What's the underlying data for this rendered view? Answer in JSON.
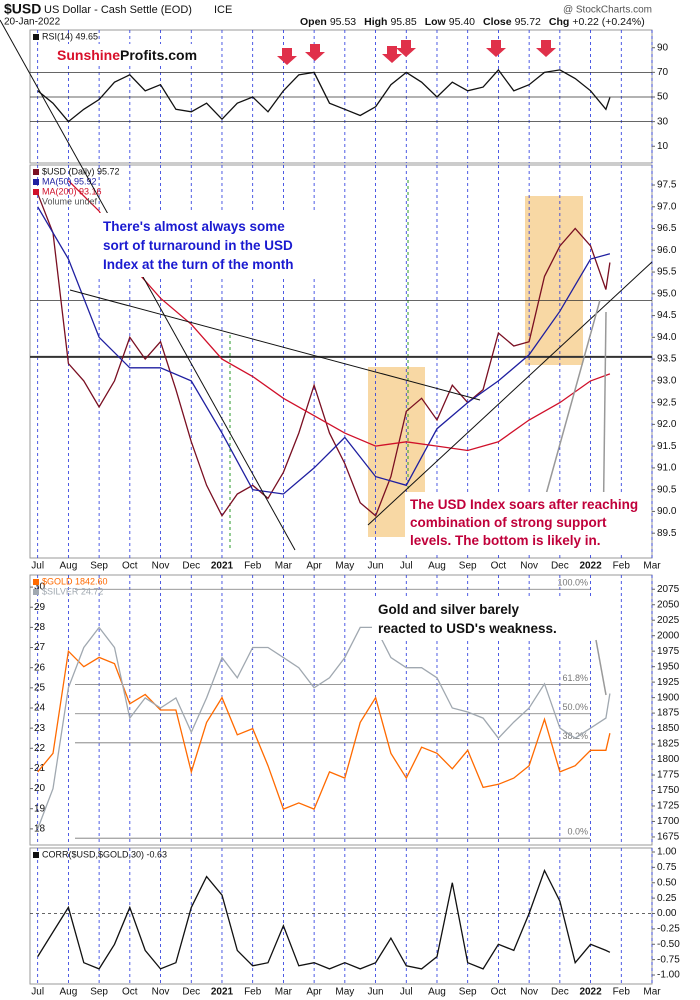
{
  "header": {
    "symbol": "$USD",
    "name": "US Dollar - Cash Settle (EOD)",
    "exchange": "ICE",
    "date": "20-Jan-2022",
    "source": "@ StockCharts.com",
    "quote": [
      {
        "label": "Open",
        "value": "95.53"
      },
      {
        "label": "High",
        "value": "95.85"
      },
      {
        "label": "Low",
        "value": "95.40"
      },
      {
        "label": "Close",
        "value": "95.72"
      },
      {
        "label": "Chg",
        "value": "+0.22 (+0.24%)"
      }
    ]
  },
  "logo": {
    "part1": "Sunshine",
    "part2": "Profits.com"
  },
  "annotations": [
    {
      "lines": [
        "There's almost always some",
        "sort of turnaround in the USD",
        "Index at the turn of the month"
      ]
    },
    {
      "lines": [
        "The USD Index soars after reaching",
        "combination of strong support",
        "levels. The bottom is likely in."
      ]
    },
    {
      "lines": [
        "Gold and silver barely",
        "reacted to USD's weakness."
      ]
    }
  ],
  "chart_data": [
    {
      "type": "line",
      "xlim": [
        -0.25,
        20
      ],
      "ylim": [
        -3.6,
        104.4
      ],
      "yticks": [
        10,
        30,
        50,
        70,
        90
      ],
      "reference_lines": [
        70,
        50,
        30
      ],
      "series": [
        {
          "legend": "RSI(14) 49.65",
          "color": "#111111",
          "x": [
            0,
            0.5,
            1,
            1.5,
            2,
            2.5,
            3,
            3.5,
            4,
            4.5,
            5,
            5.5,
            6,
            6.5,
            7,
            7.5,
            8,
            8.5,
            9,
            9.5,
            10,
            10.5,
            11,
            11.5,
            12,
            12.5,
            13,
            13.5,
            14,
            14.5,
            15,
            15.5,
            16,
            16.5,
            17,
            17.5,
            18,
            18.5,
            18.63
          ],
          "values": [
            55,
            45,
            30,
            40,
            48,
            62,
            68,
            55,
            60,
            40,
            38,
            45,
            32,
            45,
            50,
            38,
            55,
            68,
            70,
            45,
            40,
            35,
            42,
            60,
            70,
            62,
            50,
            62,
            55,
            58,
            72,
            55,
            60,
            70,
            72,
            65,
            55,
            40,
            49.65
          ]
        }
      ]
    },
    {
      "type": "line",
      "xlim": [
        -0.25,
        20
      ],
      "ylim": [
        88.93,
        97.96
      ],
      "note": "Volume undef",
      "yticks": [
        89.5,
        {
          "value": 90,
          "label": "90.0"
        },
        90.5,
        {
          "value": 91,
          "label": "91.0"
        },
        91.5,
        {
          "value": 92,
          "label": "92.0"
        },
        92.5,
        {
          "value": 93,
          "label": "93.0"
        },
        93.5,
        {
          "value": 94,
          "label": "94.0"
        },
        94.5,
        {
          "value": 95,
          "label": "95.0"
        },
        95.5,
        {
          "value": 96,
          "label": "96.0"
        },
        96.5,
        {
          "value": 97,
          "label": "97.0"
        },
        97.5
      ],
      "xticks": [
        {
          "value": 0,
          "label": "Jul"
        },
        {
          "value": 1,
          "label": "Aug"
        },
        {
          "value": 2,
          "label": "Sep"
        },
        {
          "value": 3,
          "label": "Oct"
        },
        {
          "value": 4,
          "label": "Nov"
        },
        {
          "value": 5,
          "label": "Dec"
        },
        {
          "value": 6,
          "label": "2021"
        },
        {
          "value": 7,
          "label": "Feb"
        },
        {
          "value": 8,
          "label": "Mar"
        },
        {
          "value": 9,
          "label": "Apr"
        },
        {
          "value": 10,
          "label": "May"
        },
        {
          "value": 11,
          "label": "Jun"
        },
        {
          "value": 12,
          "label": "Jul"
        },
        {
          "value": 13,
          "label": "Aug"
        },
        {
          "value": 14,
          "label": "Sep"
        },
        {
          "value": 15,
          "label": "Oct"
        },
        {
          "value": 16,
          "label": "Nov"
        },
        {
          "value": 17,
          "label": "Dec"
        },
        {
          "value": 18,
          "label": "2022"
        },
        {
          "value": 19,
          "label": "Feb"
        },
        {
          "value": 20,
          "label": "Mar"
        }
      ],
      "reference_lines": [
        94.85,
        93.55
      ],
      "series": [
        {
          "legend": "$USD (Daily) 95.72",
          "color": "#7a0f22",
          "x": [
            0,
            0.5,
            1,
            1.5,
            2,
            2.5,
            3,
            3.5,
            4,
            4.5,
            5,
            5.5,
            6,
            6.5,
            7,
            7.5,
            8,
            8.5,
            9,
            9.5,
            10,
            10.5,
            11,
            11.5,
            12,
            12.5,
            13,
            13.5,
            14,
            14.5,
            15,
            15.5,
            16,
            16.5,
            17,
            17.5,
            18,
            18.5,
            18.63
          ],
          "values": [
            97.3,
            96.4,
            93.4,
            93.0,
            92.4,
            93.0,
            94.0,
            93.5,
            93.9,
            92.8,
            91.6,
            90.6,
            89.9,
            90.4,
            90.6,
            90.3,
            90.9,
            91.8,
            92.9,
            91.8,
            91.1,
            90.2,
            89.9,
            90.8,
            92.3,
            92.6,
            92.1,
            92.9,
            92.5,
            92.8,
            94.1,
            93.8,
            93.9,
            95.4,
            96.1,
            96.5,
            96.1,
            95.1,
            95.72
          ]
        },
        {
          "legend": "MA(50) 95.92",
          "color": "#1f1fa0",
          "x": [
            0,
            1,
            2,
            3,
            4,
            5,
            6,
            7,
            8,
            9,
            10,
            11,
            12,
            13,
            14,
            15,
            16,
            17,
            18,
            18.63
          ],
          "values": [
            97.0,
            95.8,
            94.0,
            93.3,
            93.3,
            93.0,
            91.8,
            90.5,
            90.4,
            91.0,
            91.7,
            90.8,
            90.6,
            91.9,
            92.5,
            93.0,
            93.6,
            94.6,
            95.8,
            95.92
          ]
        },
        {
          "legend": "MA(200) 93.16",
          "color": "#d0102a",
          "x": [
            1,
            2,
            3,
            4,
            5,
            6,
            7,
            8,
            9,
            10,
            11,
            12,
            13,
            14,
            15,
            16,
            17,
            18,
            18.63
          ],
          "values": [
            97.6,
            96.9,
            95.7,
            94.9,
            94.3,
            93.5,
            93.1,
            92.6,
            92.2,
            91.8,
            91.5,
            91.6,
            91.5,
            91.4,
            91.6,
            92.1,
            92.5,
            93.0,
            93.16
          ]
        }
      ]
    },
    {
      "type": "line",
      "xlim": [
        -0.25,
        20
      ],
      "ylim": [
        17.2,
        30.6
      ],
      "y_axis_side": "left",
      "yticks": [
        18,
        19,
        20,
        21,
        22,
        23,
        24,
        25,
        26,
        27,
        28,
        29,
        30
      ],
      "y2lim": [
        1662,
        2098
      ],
      "y2ticks": [
        1675,
        1700,
        1725,
        1750,
        1775,
        1800,
        1825,
        1850,
        1875,
        1900,
        1925,
        1950,
        1975,
        2000,
        2025,
        2050,
        2075
      ],
      "fib_levels": [
        {
          "label": "100.0%",
          "value": 2075
        },
        {
          "label": "61.8%",
          "value": 1921
        },
        {
          "label": "50.0%",
          "value": 1874
        },
        {
          "label": "38.2%",
          "value": 1827
        },
        {
          "label": "0.0%",
          "value": 1673
        }
      ],
      "series": [
        {
          "legend": "$GOLD 1842.60",
          "color": "#ff6a00",
          "axis": "y2",
          "x": [
            0,
            0.5,
            1,
            1.5,
            2,
            2.5,
            3,
            3.5,
            4,
            4.5,
            5,
            5.5,
            6,
            6.5,
            7,
            7.5,
            8,
            8.5,
            9,
            9.5,
            10,
            10.5,
            11,
            11.5,
            12,
            12.5,
            13,
            13.5,
            14,
            14.5,
            15,
            15.5,
            16,
            16.5,
            17,
            17.5,
            18,
            18.5,
            18.63
          ],
          "values": [
            1780,
            1810,
            1975,
            1950,
            1965,
            1955,
            1890,
            1905,
            1880,
            1880,
            1780,
            1860,
            1900,
            1840,
            1850,
            1790,
            1720,
            1730,
            1720,
            1780,
            1770,
            1860,
            1900,
            1810,
            1770,
            1820,
            1810,
            1785,
            1815,
            1755,
            1760,
            1770,
            1790,
            1865,
            1780,
            1790,
            1815,
            1815,
            1842.6
          ]
        },
        {
          "legend": "$SILVER 24.72",
          "color": "#a0a8b0",
          "x": [
            0,
            0.5,
            1,
            1.5,
            2,
            2.5,
            3,
            3.5,
            4,
            4.5,
            5,
            5.5,
            6,
            6.5,
            7,
            7.5,
            8,
            8.5,
            9,
            9.5,
            10,
            10.5,
            11,
            11.5,
            12,
            12.5,
            13,
            13.5,
            14,
            14.5,
            15,
            15.5,
            16,
            16.5,
            17,
            17.5,
            18,
            18.5,
            18.63
          ],
          "values": [
            18,
            20,
            25,
            27,
            28,
            27,
            23.5,
            24.5,
            24,
            24.5,
            22.8,
            24.5,
            26.5,
            25.5,
            27,
            27,
            26.5,
            26,
            25,
            25.5,
            26.5,
            28,
            28,
            26.5,
            26,
            26,
            25.5,
            24,
            23.8,
            23.5,
            22.5,
            23.3,
            24,
            25.2,
            23,
            22.5,
            23,
            23.5,
            24.72
          ]
        }
      ]
    },
    {
      "type": "line",
      "xlim": [
        -0.25,
        20
      ],
      "ylim": [
        -1.146,
        1.065
      ],
      "yticks": [
        {
          "value": 1,
          "label": "1.00"
        },
        0.75,
        {
          "value": 0.5,
          "label": "0.50"
        },
        0.25,
        {
          "value": 0,
          "label": "0.00"
        },
        -0.25,
        {
          "value": -0.5,
          "label": "-0.50"
        },
        -0.75,
        {
          "value": -1,
          "label": "-1.00"
        }
      ],
      "xticks": [
        {
          "value": 0,
          "label": "Jul"
        },
        {
          "value": 1,
          "label": "Aug"
        },
        {
          "value": 2,
          "label": "Sep"
        },
        {
          "value": 3,
          "label": "Oct"
        },
        {
          "value": 4,
          "label": "Nov"
        },
        {
          "value": 5,
          "label": "Dec"
        },
        {
          "value": 6,
          "label": "2021"
        },
        {
          "value": 7,
          "label": "Feb"
        },
        {
          "value": 8,
          "label": "Mar"
        },
        {
          "value": 9,
          "label": "Apr"
        },
        {
          "value": 10,
          "label": "May"
        },
        {
          "value": 11,
          "label": "Jun"
        },
        {
          "value": 12,
          "label": "Jul"
        },
        {
          "value": 13,
          "label": "Aug"
        },
        {
          "value": 14,
          "label": "Sep"
        },
        {
          "value": 15,
          "label": "Oct"
        },
        {
          "value": 16,
          "label": "Nov"
        },
        {
          "value": 17,
          "label": "Dec"
        },
        {
          "value": 18,
          "label": "2022"
        },
        {
          "value": 19,
          "label": "Feb"
        },
        {
          "value": 20,
          "label": "Mar"
        }
      ],
      "reference_lines": [
        0
      ],
      "series": [
        {
          "legend": "CORR($USD,$GOLD,30) -0.63",
          "color": "#111111",
          "x": [
            0,
            0.5,
            1,
            1.5,
            2,
            2.5,
            3,
            3.5,
            4,
            4.5,
            5,
            5.5,
            6,
            6.5,
            7,
            7.5,
            8,
            8.5,
            9,
            9.5,
            10,
            10.5,
            11,
            11.5,
            12,
            12.5,
            13,
            13.5,
            14,
            14.5,
            15,
            15.5,
            16,
            16.5,
            17,
            17.5,
            18,
            18.5,
            18.63
          ],
          "values": [
            -0.7,
            -0.3,
            0.1,
            -0.8,
            -0.9,
            -0.5,
            0.1,
            -0.6,
            -0.9,
            -0.8,
            0.1,
            0.6,
            0.3,
            -0.6,
            -0.85,
            -0.8,
            -0.2,
            -0.85,
            -0.8,
            -0.9,
            -0.8,
            -0.9,
            -0.8,
            -0.4,
            -0.85,
            -0.9,
            -0.7,
            0.5,
            -0.8,
            -0.9,
            -0.5,
            -0.6,
            0.0,
            0.7,
            0.2,
            -0.8,
            -0.5,
            -0.6,
            -0.63
          ]
        }
      ]
    }
  ]
}
